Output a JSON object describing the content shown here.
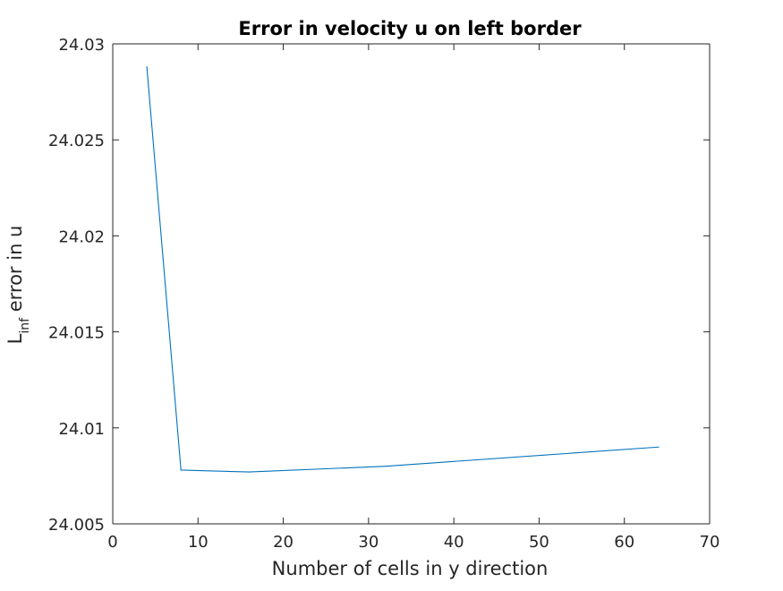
{
  "chart_data": {
    "type": "line",
    "title": "Error in velocity u on left border",
    "xlabel": "Number of cells in y direction",
    "ylabel": {
      "main": "L",
      "subscript": "inf",
      "rest": " error in u"
    },
    "xlim": [
      0,
      70
    ],
    "ylim": [
      24.005,
      24.03
    ],
    "xticks": [
      0,
      10,
      20,
      30,
      40,
      50,
      60,
      70
    ],
    "yticks": [
      24.005,
      24.01,
      24.015,
      24.02,
      24.025,
      24.03
    ],
    "xtick_labels": [
      "0",
      "10",
      "20",
      "30",
      "40",
      "50",
      "60",
      "70"
    ],
    "ytick_labels": [
      "24.005",
      "24.01",
      "24.015",
      "24.02",
      "24.025",
      "24.03"
    ],
    "grid": false,
    "series": [
      {
        "color": "#0072BD",
        "x": [
          4,
          8,
          16,
          32,
          64
        ],
        "y": [
          24.0288,
          24.0078,
          24.0077,
          24.008,
          24.009
        ]
      }
    ]
  }
}
